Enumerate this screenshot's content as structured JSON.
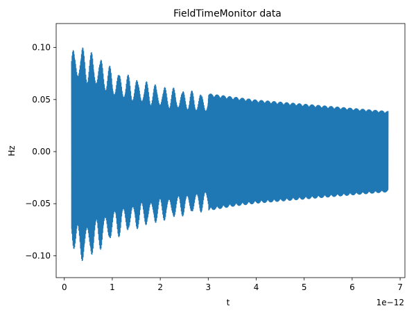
{
  "chart_data": {
    "type": "line",
    "title": "FieldTimeMonitor data",
    "xlabel": "t",
    "ylabel": "Hz",
    "x_offset_label": "1e−12",
    "x_tick_labels": [
      "0",
      "1",
      "2",
      "3",
      "4",
      "5",
      "6",
      "7"
    ],
    "x_ticks": [
      0,
      1,
      2,
      3,
      4,
      5,
      6,
      7
    ],
    "y_tick_labels": [
      "−0.10",
      "−0.05",
      "0.00",
      "0.05",
      "0.10"
    ],
    "y_ticks": [
      -0.1,
      -0.05,
      0.0,
      0.05,
      0.1
    ],
    "xlim": [
      -0.17,
      7.1
    ],
    "ylim": [
      -0.121,
      0.123
    ],
    "grid": false,
    "series": [
      {
        "color": "#1f77b4",
        "description": "dense oscillating signal whose envelope decays from about ±0.10 near t=0.15e-12 to about ±0.04 at t=6.75e-12",
        "envelope_x": [
          0.15,
          0.3,
          0.5,
          0.8,
          1.0,
          1.5,
          2.0,
          2.5,
          3.0,
          3.5,
          4.0,
          4.5,
          5.0,
          5.5,
          6.0,
          6.5,
          6.75
        ],
        "envelope_upper": [
          0.098,
          0.104,
          0.098,
          0.09,
          0.08,
          0.071,
          0.064,
          0.06,
          0.056,
          0.053,
          0.05,
          0.048,
          0.046,
          0.044,
          0.042,
          0.04,
          0.039
        ],
        "envelope_lower": [
          -0.088,
          -0.108,
          -0.104,
          -0.093,
          -0.085,
          -0.075,
          -0.068,
          -0.062,
          -0.057,
          -0.053,
          -0.05,
          -0.048,
          -0.046,
          -0.044,
          -0.042,
          -0.04,
          -0.039
        ]
      }
    ]
  }
}
